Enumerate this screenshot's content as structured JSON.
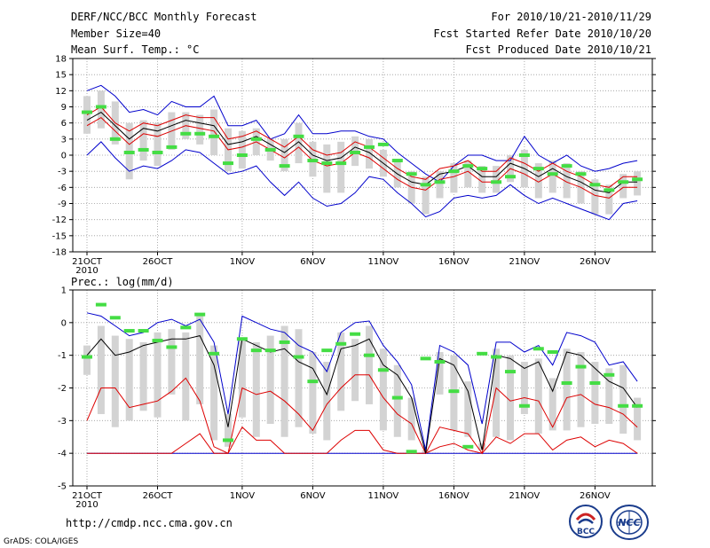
{
  "header": {
    "title": "DERF/NCC/BCC Monthly Forecast",
    "member_size": "Member Size=40",
    "variable": "Mean Surf. Temp.: °C",
    "forecast_range": "For 2010/10/21-2010/11/29",
    "started_refer": "Fcst Started Refer Date 2010/10/20",
    "produced": "Fcst Produced Date 2010/10/21"
  },
  "footer": {
    "url": "http://cmdp.ncc.cma.gov.cn",
    "grads": "GrADS: COLA/IGES",
    "logo_bcc": "BCC",
    "logo_ncc": "NCC"
  },
  "colors": {
    "box": "#d3d3d3",
    "median": "#44dd44",
    "envelope": "#0000cc",
    "quartile": "#dd0000",
    "mean": "#000000",
    "grid": "#9a9a9a"
  },
  "chart_data": [
    {
      "id": "temperature",
      "type": "line",
      "title": "Mean Surf. Temp.: °C",
      "xlabel": "",
      "ylabel": "",
      "ylim": [
        -18,
        18
      ],
      "yticks": [
        -18,
        -15,
        -12,
        -9,
        -6,
        -3,
        0,
        3,
        6,
        9,
        12,
        15,
        18
      ],
      "days": 40,
      "xticks": [
        {
          "day": 1,
          "label": "21OCT",
          "sub": "2010"
        },
        {
          "day": 6,
          "label": "26OCT"
        },
        {
          "day": 12,
          "label": "1NOV"
        },
        {
          "day": 17,
          "label": "6NOV"
        },
        {
          "day": 22,
          "label": "11NOV"
        },
        {
          "day": 27,
          "label": "16NOV"
        },
        {
          "day": 32,
          "label": "21NOV"
        },
        {
          "day": 37,
          "label": "26NOV"
        }
      ],
      "series": [
        {
          "name": "max",
          "values": [
            12,
            13,
            11,
            8,
            8.5,
            7.5,
            10,
            9,
            9,
            11,
            5.5,
            5.5,
            6.5,
            3,
            4,
            7.5,
            4,
            4,
            4.5,
            4.5,
            3.5,
            3,
            0.5,
            -1.5,
            -3.5,
            -5,
            -2,
            0,
            0,
            -1,
            -1,
            3.5,
            0,
            -1.5,
            0,
            -2,
            -3,
            -2.5,
            -1.5,
            -1
          ]
        },
        {
          "name": "upper_quartile",
          "values": [
            7.5,
            9,
            6,
            4.5,
            6,
            5.5,
            6.5,
            7.5,
            7,
            7,
            3,
            3.5,
            4.5,
            3,
            1.5,
            3.5,
            1,
            0,
            0.5,
            2.5,
            1.5,
            -0.5,
            -2.5,
            -4,
            -4.5,
            -2.5,
            -2,
            -1,
            -3,
            -3,
            -0.5,
            -1.5,
            -3,
            -1.5,
            -3,
            -4,
            -5.5,
            -6,
            -4,
            -4
          ]
        },
        {
          "name": "mean",
          "values": [
            6.5,
            8,
            5.5,
            3,
            5,
            4.5,
            5.5,
            6.5,
            6,
            5.5,
            2,
            2.5,
            3.5,
            2,
            0.5,
            2.5,
            0,
            -1,
            -0.5,
            1.5,
            0.5,
            -1.5,
            -3.5,
            -5,
            -5.5,
            -3.5,
            -3,
            -2,
            -4,
            -4,
            -1.5,
            -2.5,
            -4,
            -2.5,
            -4,
            -5,
            -6.5,
            -7,
            -5,
            -5
          ]
        },
        {
          "name": "lower_quartile",
          "values": [
            5.5,
            7,
            4.5,
            2,
            4,
            3.5,
            4.5,
            5.5,
            5,
            4.5,
            1,
            1.5,
            2.5,
            1,
            -0.5,
            1.5,
            -1,
            -2,
            -1.5,
            0.5,
            -0.5,
            -2.5,
            -4.5,
            -6,
            -6.5,
            -4.5,
            -4,
            -3,
            -5,
            -5,
            -2.5,
            -3.5,
            -5,
            -3.5,
            -5,
            -6,
            -7.5,
            -8,
            -6,
            -6
          ]
        },
        {
          "name": "min",
          "values": [
            0,
            2.5,
            -0.5,
            -3,
            -2,
            -2.5,
            -1,
            1,
            0.5,
            -1.5,
            -3.5,
            -3,
            -2,
            -5,
            -7.5,
            -5,
            -8,
            -9.5,
            -9,
            -7,
            -4,
            -4.5,
            -7,
            -9,
            -11.5,
            -10.5,
            -8,
            -7.5,
            -8,
            -7.5,
            -5.5,
            -7.5,
            -9,
            -8,
            -9,
            -10,
            -11,
            -12,
            -9,
            -8.5
          ]
        },
        {
          "name": "median",
          "values": [
            8,
            9,
            3,
            0.5,
            1,
            0.5,
            1.5,
            4,
            4,
            3.5,
            -1.5,
            0,
            3,
            1,
            -2,
            3.5,
            -1,
            -1.5,
            -1.5,
            0.5,
            1.5,
            2,
            -1,
            -3.5,
            -5.5,
            -5,
            -3,
            -2,
            -2.5,
            -5,
            -4,
            0,
            -2.5,
            -3.5,
            -2,
            -3.5,
            -5.5,
            -6.5,
            -5,
            -4.5
          ]
        },
        {
          "name": "box_top",
          "values": [
            11,
            12,
            10,
            6,
            6.5,
            6,
            8,
            8,
            7.5,
            8.5,
            5,
            4.5,
            5,
            3,
            3,
            6,
            2.5,
            2,
            2.5,
            3.5,
            3,
            1,
            -1,
            -3,
            -4,
            -3,
            -1.5,
            -1,
            -2,
            -2,
            0,
            1,
            -1.5,
            -1,
            -1.5,
            -3,
            -4.5,
            -5.5,
            -3.5,
            -3
          ]
        },
        {
          "name": "box_bottom",
          "values": [
            4,
            5,
            2,
            -4.5,
            -1,
            -2,
            1,
            3,
            2,
            0,
            -3,
            -2.5,
            0,
            -1,
            -3,
            -1.5,
            -4,
            -7,
            -7,
            -2,
            -2.5,
            -4,
            -6,
            -9,
            -11,
            -8,
            -7,
            -6,
            -7,
            -7,
            -5,
            -6,
            -8,
            -7,
            -8,
            -9,
            -11,
            -11,
            -8,
            -7.5
          ]
        }
      ]
    },
    {
      "id": "precipitation",
      "type": "line",
      "title": "Prec.: log(mm/d)",
      "xlabel": "",
      "ylabel": "",
      "ylim": [
        -5,
        1
      ],
      "yticks": [
        -5,
        -4,
        -3,
        -2,
        -1,
        0,
        1
      ],
      "days": 40,
      "xticks": [
        {
          "day": 1,
          "label": "21OCT",
          "sub": "2010"
        },
        {
          "day": 6,
          "label": "26OCT"
        },
        {
          "day": 12,
          "label": "1NOV"
        },
        {
          "day": 17,
          "label": "6NOV"
        },
        {
          "day": 22,
          "label": "11NOV"
        },
        {
          "day": 27,
          "label": "16NOV"
        },
        {
          "day": 32,
          "label": "21NOV"
        },
        {
          "day": 37,
          "label": "26NOV"
        }
      ],
      "series": [
        {
          "name": "max",
          "values": [
            0.3,
            0.2,
            -0.1,
            -0.4,
            -0.3,
            0,
            0.1,
            -0.1,
            0.1,
            -0.6,
            -2.8,
            0.2,
            0,
            -0.2,
            -0.3,
            -0.7,
            -0.9,
            -1.5,
            -0.3,
            0,
            0.05,
            -0.7,
            -1.2,
            -1.9,
            -3.9,
            -0.7,
            -0.9,
            -1.3,
            -3.1,
            -0.6,
            -0.6,
            -0.9,
            -0.7,
            -1.3,
            -0.3,
            -0.4,
            -0.6,
            -1.3,
            -1.2,
            -1.8
          ]
        },
        {
          "name": "mean",
          "values": [
            -1,
            -0.5,
            -1,
            -0.9,
            -0.7,
            -0.6,
            -0.5,
            -0.5,
            -0.4,
            -1.3,
            -3.2,
            -0.5,
            -0.7,
            -0.9,
            -0.8,
            -1.2,
            -1.4,
            -2.2,
            -0.8,
            -0.7,
            -0.5,
            -1.3,
            -1.6,
            -2.3,
            -4,
            -1.1,
            -1.3,
            -2.1,
            -3.9,
            -1,
            -1.1,
            -1.4,
            -1.2,
            -2.1,
            -0.9,
            -1,
            -1.4,
            -1.8,
            -2,
            -2.6
          ]
        },
        {
          "name": "upper_quartile",
          "values": [
            -3,
            -2,
            -2,
            -2.6,
            -2.5,
            -2.4,
            -2.1,
            -1.7,
            -2.4,
            -3.8,
            -4,
            -2,
            -2.2,
            -2.1,
            -2.4,
            -2.8,
            -3.3,
            -2.5,
            -2,
            -1.6,
            -1.6,
            -2.3,
            -2.8,
            -3.1,
            -4,
            -3.2,
            -3.3,
            -3.4,
            -4,
            -2,
            -2.4,
            -2.3,
            -2.4,
            -3.2,
            -2.3,
            -2.2,
            -2.5,
            -2.6,
            -2.8,
            -3.2
          ]
        },
        {
          "name": "lower_quartile",
          "values": [
            -4,
            -4,
            -4,
            -4,
            -4,
            -4,
            -4,
            -3.7,
            -3.4,
            -4,
            -4,
            -3.2,
            -3.6,
            -3.6,
            -4,
            -4,
            -4,
            -4,
            -3.6,
            -3.3,
            -3.3,
            -3.9,
            -4,
            -4,
            -4,
            -3.8,
            -3.7,
            -3.9,
            -4,
            -3.5,
            -3.7,
            -3.4,
            -3.4,
            -3.9,
            -3.6,
            -3.5,
            -3.8,
            -3.6,
            -3.7,
            -4
          ]
        },
        {
          "name": "min",
          "values": [
            -4,
            -4,
            -4,
            -4,
            -4,
            -4,
            -4,
            -4,
            -4,
            -4,
            -4,
            -4,
            -4,
            -4,
            -4,
            -4,
            -4,
            -4,
            -4,
            -4,
            -4,
            -4,
            -4,
            -4,
            -4,
            -4,
            -4,
            -4,
            -4,
            -4,
            -4,
            -4,
            -4,
            -4,
            -4,
            -4,
            -4,
            -4,
            -4,
            -4
          ]
        },
        {
          "name": "median",
          "values": [
            -1.05,
            0.55,
            0.15,
            -0.25,
            -0.25,
            -0.55,
            -0.75,
            -0.15,
            0.25,
            -0.95,
            -3.6,
            -0.5,
            -0.85,
            -0.85,
            -0.6,
            -1.05,
            -1.8,
            -0.85,
            -0.65,
            -0.35,
            -1,
            -1.45,
            -2.3,
            -3.95,
            -1.1,
            -1.2,
            -2.1,
            -3.8,
            -0.95,
            -1.05,
            -1.5,
            -2.55,
            -0.8,
            -0.9,
            -1.85,
            -1.35,
            -1.85,
            -1.6,
            -2.55,
            -2.55
          ]
        },
        {
          "name": "box_top",
          "values": [
            -0.7,
            -0.1,
            -0.4,
            -0.5,
            -0.6,
            -0.3,
            -0.2,
            -0.3,
            0.2,
            -0.7,
            -2.8,
            -0.5,
            -0.6,
            -0.4,
            -0.1,
            -0.2,
            -0.9,
            -1.2,
            -0.3,
            -0.5,
            -0.1,
            -0.8,
            -1.3,
            -2.3,
            -3.9,
            -0.9,
            -1,
            -1.8,
            -3.7,
            -0.8,
            -1,
            -1.2,
            -1.1,
            -1.7,
            -0.8,
            -0.9,
            -1.2,
            -1.4,
            -1.3,
            -2.3
          ]
        },
        {
          "name": "box_bottom",
          "values": [
            -1.6,
            -2.8,
            -3.2,
            -3,
            -2.7,
            -2.9,
            -2.2,
            -3,
            -2.5,
            -3.6,
            -3.8,
            -2.9,
            -3.5,
            -3.1,
            -3.5,
            -3.2,
            -3.4,
            -3.6,
            -2.7,
            -2.4,
            -2.5,
            -3.3,
            -3.5,
            -3.6,
            -4,
            -2.2,
            -3.3,
            -3.5,
            -3.9,
            -3.5,
            -3.6,
            -2.8,
            -3.4,
            -3.3,
            -3.3,
            -3.2,
            -3.1,
            -3.1,
            -3.4,
            -3.6
          ]
        }
      ]
    }
  ]
}
